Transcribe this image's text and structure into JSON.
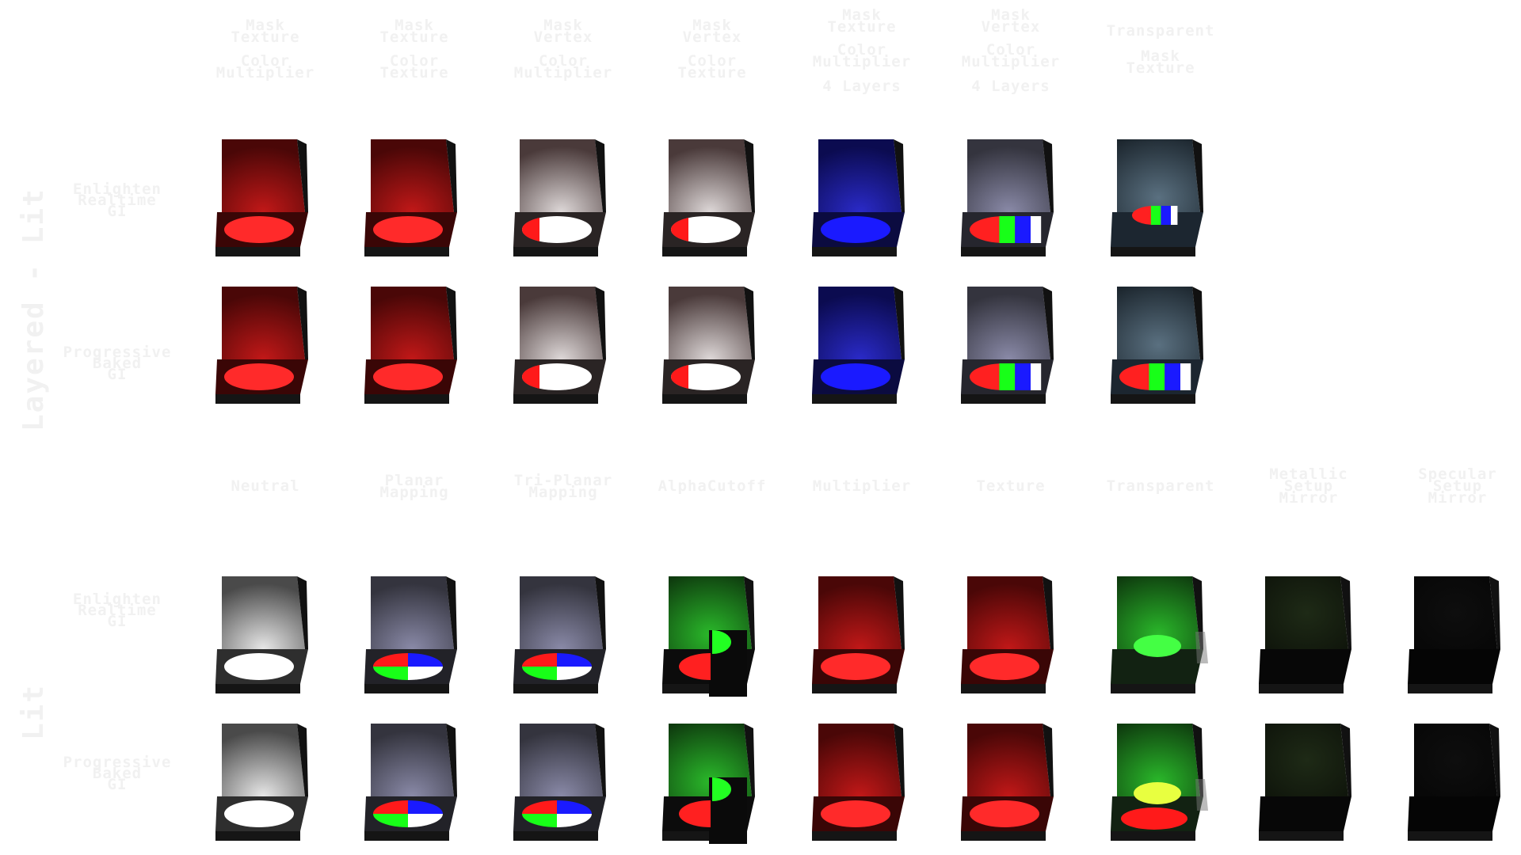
{
  "sections": {
    "layered": {
      "title": "Layered - Lit",
      "columns": [
        {
          "line1": "Mask\nTexture",
          "line2": "Color\nMultiplier",
          "line3": ""
        },
        {
          "line1": "Mask\nTexture",
          "line2": "Color\nTexture",
          "line3": ""
        },
        {
          "line1": "Mask\nVertex",
          "line2": "Color\nMultiplier",
          "line3": ""
        },
        {
          "line1": "Mask\nVertex",
          "line2": "Color\nTexture",
          "line3": ""
        },
        {
          "line1": "Mask\nTexture",
          "line2": "Color\nMultiplier",
          "line3": "4 Layers"
        },
        {
          "line1": "Mask\nVertex",
          "line2": "Color\nMultiplier",
          "line3": "4 Layers"
        },
        {
          "line1": "Transparent",
          "line2": "Mask\nTexture",
          "line3": ""
        }
      ],
      "rows": [
        "Enlighten\nRealtime\nGI",
        "Progressive\nBaked\nGI"
      ]
    },
    "lit": {
      "title": "Lit",
      "columns": [
        "Neutral",
        "Planar\nMapping",
        "Tri-Planar\nMapping",
        "AlphaCutoff",
        "Multiplier",
        "Texture",
        "Transparent",
        "Metallic\nSetup\nMirror",
        "Specular\nSetup\nMirror"
      ],
      "rows": [
        "Enlighten\nRealtime\nGI",
        "Progressive\nBaked\nGI"
      ]
    }
  },
  "tiles": {
    "layered": [
      [
        "red",
        "red",
        "white-red",
        "white-red",
        "blue",
        "rgb-stripes",
        "transparent-stripes"
      ],
      [
        "red",
        "red",
        "white-red",
        "white-red",
        "blue",
        "rgb-stripes",
        "transparent-stripes"
      ]
    ],
    "lit": [
      [
        "white",
        "quadrants",
        "quadrants",
        "alpha-cutoff",
        "red",
        "red",
        "transparent-green",
        "dark-metal",
        "dark-spec"
      ],
      [
        "white",
        "quadrants",
        "quadrants",
        "alpha-cutoff",
        "red",
        "red",
        "transparent-green",
        "dark-metal",
        "dark-spec"
      ]
    ]
  }
}
